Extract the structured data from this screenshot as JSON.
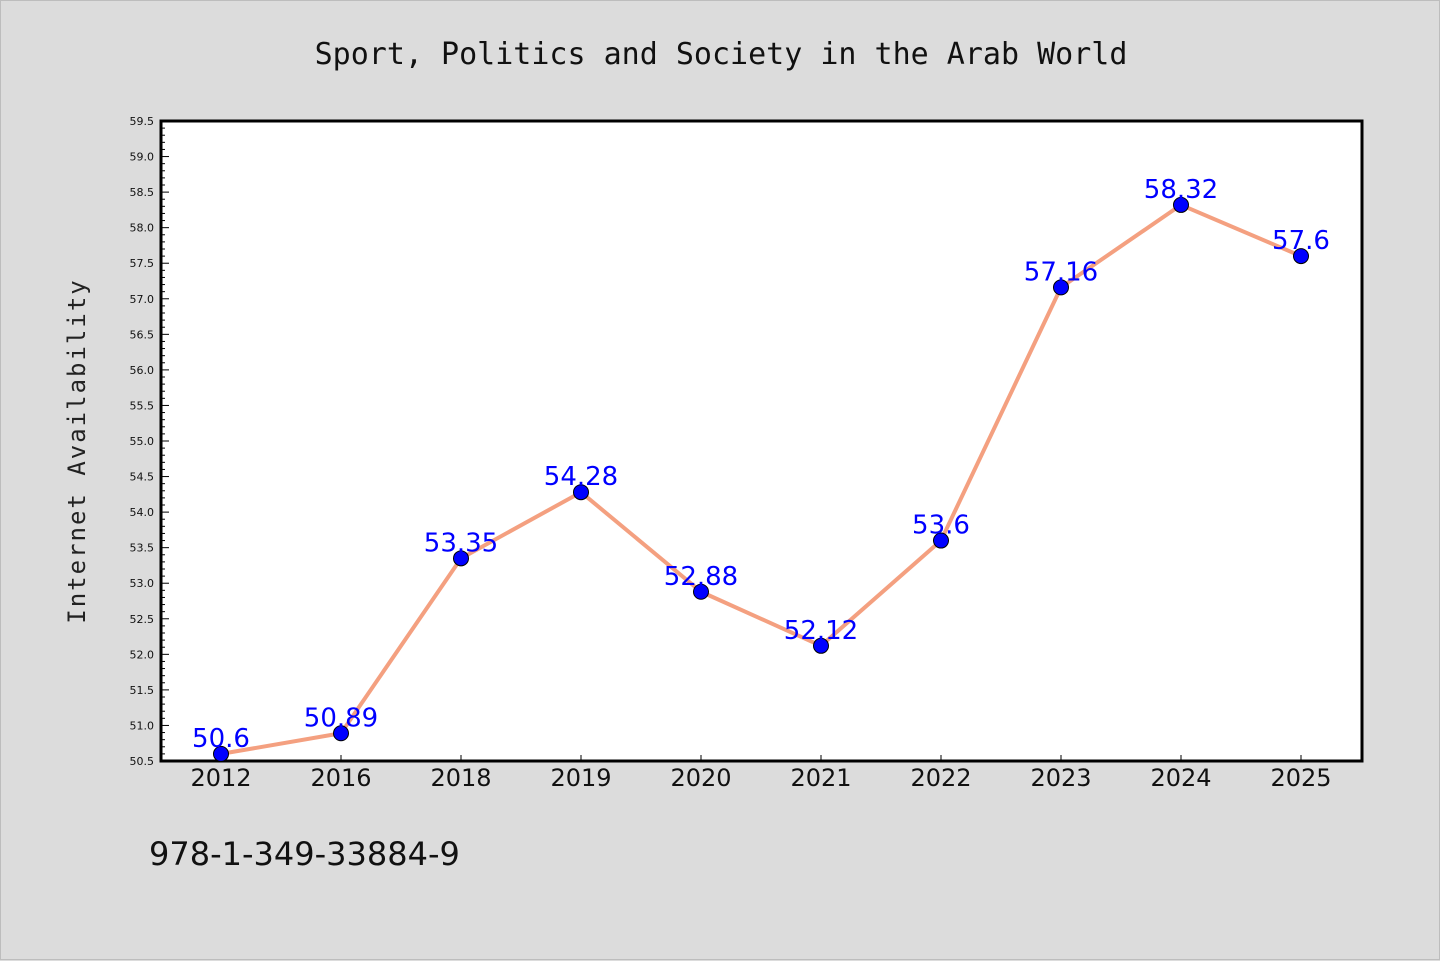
{
  "chart_data": {
    "type": "line",
    "title": "Sport, Politics and Society in the Arab World",
    "xlabel": "",
    "ylabel": "Internet Availability",
    "categories": [
      "2012",
      "2016",
      "2018",
      "2019",
      "2020",
      "2021",
      "2022",
      "2023",
      "2024",
      "2025"
    ],
    "series": [
      {
        "values": [
          50.6,
          50.89,
          53.35,
          54.28,
          52.88,
          52.12,
          53.6,
          57.16,
          58.32,
          57.6
        ]
      }
    ],
    "data_labels": [
      "50.6",
      "50.89",
      "53.35",
      "54.28",
      "52.88",
      "52.12",
      "53.6",
      "57.16",
      "58.32",
      "57.6"
    ],
    "ylim": [
      50.5,
      59.5
    ],
    "yticks": [
      "50.5",
      "51.0",
      "51.5",
      "52.0",
      "52.5",
      "53.0",
      "53.5",
      "54.0",
      "54.5",
      "55.0",
      "55.5",
      "56.0",
      "56.5",
      "57.0",
      "57.5",
      "58.0",
      "58.5",
      "59.0",
      "59.5"
    ],
    "grid": false,
    "legend": "none",
    "colors": {
      "line": "#f4a080",
      "marker": "#0000ff",
      "data_label": "#0000ff",
      "background": "#dcdcdc",
      "plot_background": "#ffffff"
    }
  },
  "footer": {
    "isbn": "978-1-349-33884-9"
  }
}
